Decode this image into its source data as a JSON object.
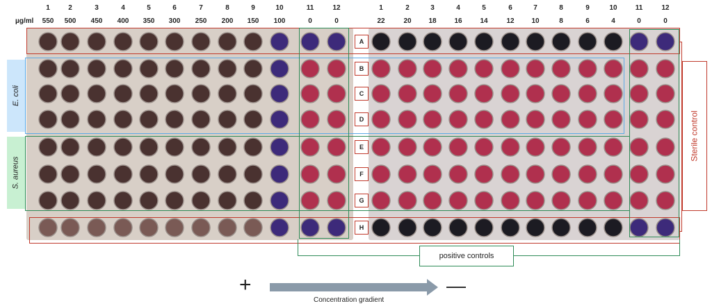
{
  "unit_label": "µg/ml",
  "left_columns": [
    "1",
    "2",
    "3",
    "4",
    "5",
    "6",
    "7",
    "8",
    "9",
    "10",
    "11",
    "12"
  ],
  "left_concentrations": [
    "550",
    "500",
    "450",
    "400",
    "350",
    "300",
    "250",
    "200",
    "150",
    "100",
    "0",
    "0"
  ],
  "right_columns": [
    "1",
    "2",
    "3",
    "4",
    "5",
    "6",
    "7",
    "8",
    "9",
    "10",
    "11",
    "12"
  ],
  "right_concentrations": [
    "22",
    "20",
    "18",
    "16",
    "14",
    "12",
    "10",
    "8",
    "6",
    "4",
    "0",
    "0"
  ],
  "rows": [
    "A",
    "B",
    "C",
    "D",
    "E",
    "F",
    "G",
    "H"
  ],
  "organisms": {
    "ecoli": "E. coli",
    "saureus": "S. aureus"
  },
  "sterile_control": "Sterile control",
  "positive_controls": "positive controls",
  "plus_sign": "+",
  "minus_sign": "—",
  "gradient_label": "Concentration gradient",
  "colors": {
    "brown_well": "#4a3230",
    "violet_well": "#3d2a7a",
    "pink_well": "#b0304e",
    "dark_well": "#1c1b22",
    "red_box": "#c0392b",
    "blue_box": "#5aa9e6",
    "green_box": "#2e8b57"
  }
}
